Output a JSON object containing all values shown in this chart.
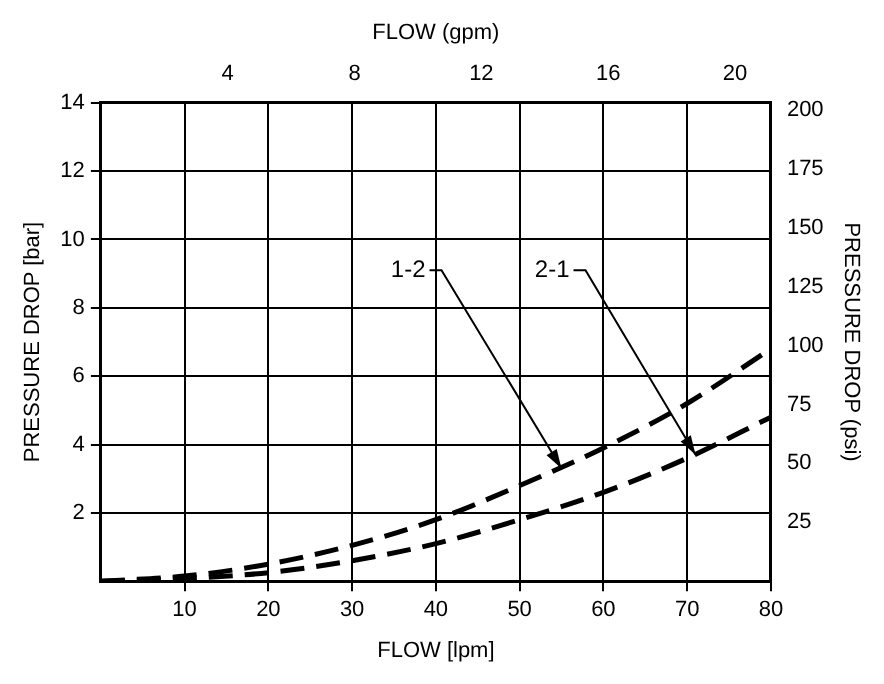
{
  "chart_data": {
    "type": "line",
    "xlabel": "FLOW [lpm]",
    "ylabel": "PRESSURE DROP [bar]",
    "x2label": "FLOW (gpm)",
    "y2label": "PRESSURE DROP (psi)",
    "x": [
      0,
      10,
      20,
      30,
      40,
      50,
      60,
      70,
      80
    ],
    "series": [
      {
        "color": "#000000",
        "line_style": "dashed",
        "values": [
          0,
          0.15,
          0.5,
          1.05,
          1.8,
          2.8,
          3.9,
          5.2,
          6.8
        ]
      },
      {
        "color": "#000000",
        "line_style": "dashed",
        "values": [
          0,
          0.08,
          0.25,
          0.6,
          1.1,
          1.8,
          2.6,
          3.6,
          4.8
        ]
      }
    ],
    "xlim": [
      0,
      80
    ],
    "xticks": [
      10,
      20,
      30,
      40,
      50,
      60,
      70,
      80
    ],
    "ylim": [
      0,
      14
    ],
    "yticks": [
      2,
      4,
      6,
      8,
      10,
      12,
      14
    ],
    "x2lim": [
      0,
      21.13
    ],
    "x2ticks": [
      4,
      8,
      12,
      16,
      20
    ],
    "y2lim": [
      0,
      203
    ],
    "y2ticks": [
      25,
      50,
      75,
      100,
      125,
      150,
      175,
      200
    ],
    "annotations": [
      {
        "text": "1-2",
        "x": 55,
        "y": 3.3
      },
      {
        "text": "2-1",
        "x": 71,
        "y": 3.7
      }
    ],
    "grid": true,
    "marker": "none",
    "legend": false
  }
}
